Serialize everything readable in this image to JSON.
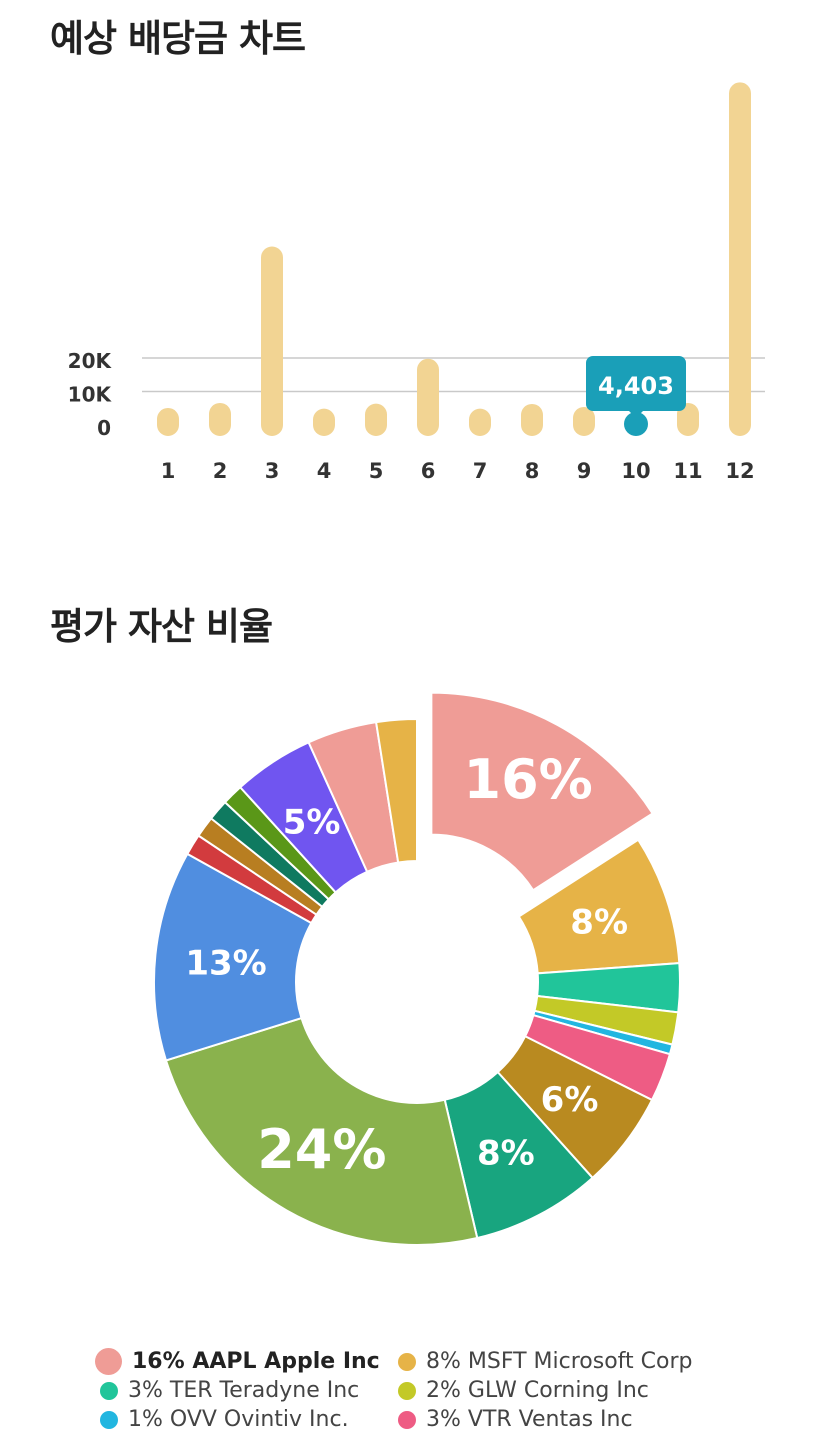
{
  "sections": {
    "dividend_title": "예상 배당금 차트",
    "asset_title": "평가 자산 비율"
  },
  "chart_data": [
    {
      "type": "bar",
      "categories": [
        "1",
        "2",
        "3",
        "4",
        "5",
        "6",
        "7",
        "8",
        "9",
        "10",
        "11",
        "12"
      ],
      "values": [
        1800,
        3300,
        50000,
        1600,
        3100,
        16500,
        1600,
        3000,
        2100,
        4403,
        3300,
        99000
      ],
      "highlighted_index": 9,
      "tooltip": "4,403",
      "yticks": [
        "0",
        "10K",
        "20K"
      ],
      "ylim": [
        0,
        100000
      ],
      "grid": true,
      "colors": {
        "bar": "#f2d493",
        "highlight": "#1a9fb8",
        "tooltip_bg": "#1a9fb8",
        "grid": "#c9c9c9"
      }
    },
    {
      "type": "pie",
      "style": "donut",
      "slices": [
        {
          "label": "AAPL Apple Inc",
          "value": 16,
          "color": "#ef9c96",
          "show_label": true,
          "exploded": true
        },
        {
          "label": "MSFT Microsoft Corp",
          "value": 8,
          "color": "#e6b347",
          "show_label": true
        },
        {
          "label": "TER Teradyne Inc",
          "value": 3,
          "color": "#21c59a"
        },
        {
          "label": "GLW Corning Inc",
          "value": 2,
          "color": "#c3c927"
        },
        {
          "label": "OVV Ovintiv Inc.",
          "value": 0.6,
          "color": "#22b6e0"
        },
        {
          "label": "VTR Ventas Inc",
          "value": 3,
          "color": "#ee5c84"
        },
        {
          "value": 6,
          "color": "#b98a20",
          "show_label": true
        },
        {
          "value": 8,
          "color": "#18a57f",
          "show_label": true
        },
        {
          "value": 24,
          "color": "#8ab24d",
          "show_label": true
        },
        {
          "value": 13,
          "color": "#508ee0",
          "show_label": true
        },
        {
          "value": 1.3,
          "color": "#d23b3e"
        },
        {
          "value": 1.3,
          "color": "#b87e21"
        },
        {
          "value": 1.3,
          "color": "#0f7a60"
        },
        {
          "value": 1.3,
          "color": "#5a9718"
        },
        {
          "value": 5,
          "color": "#7055f0",
          "show_label": true
        },
        {
          "value": 4.3,
          "color": "#ef9c96"
        },
        {
          "value": 2.5,
          "color": "#e6b347"
        }
      ]
    }
  ],
  "legend": [
    {
      "text": "16% AAPL Apple Inc",
      "color": "#ef9c96",
      "bold": true
    },
    {
      "text": "8% MSFT Microsoft Corp",
      "color": "#e6b347"
    },
    {
      "text": "3% TER Teradyne Inc",
      "color": "#21c59a"
    },
    {
      "text": "2% GLW Corning Inc",
      "color": "#c3c927"
    },
    {
      "text": "1% OVV Ovintiv Inc.",
      "color": "#22b6e0"
    },
    {
      "text": "3% VTR Ventas Inc",
      "color": "#ee5c84"
    }
  ]
}
